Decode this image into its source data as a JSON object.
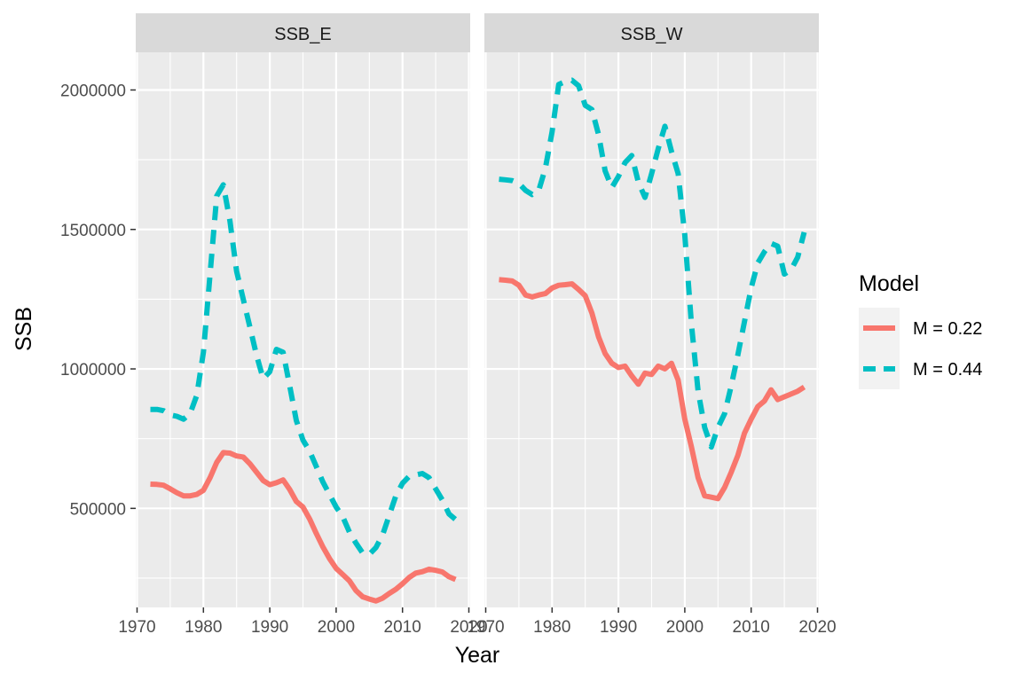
{
  "chart_data": {
    "type": "line",
    "xlabel": "Year",
    "ylabel": "SSB",
    "xlim": [
      1970,
      2020
    ],
    "ylim": [
      145000,
      2135000
    ],
    "x_ticks": [
      1970,
      1980,
      1990,
      2000,
      2010,
      2020
    ],
    "x_tick_labels": [
      "1970",
      "1980",
      "1990",
      "2000",
      "2010",
      "2020"
    ],
    "y_ticks": [
      500000,
      1000000,
      1500000,
      2000000
    ],
    "y_tick_labels": [
      "500000",
      "1000000",
      "1500000",
      "2000000"
    ],
    "y_minor_ticks": [
      250000,
      750000,
      1250000,
      1750000
    ],
    "grid": true,
    "legend": {
      "title": "Model",
      "position": "right",
      "entries": [
        {
          "label": "M = 0.22",
          "color": "#F8766D",
          "dash": "solid"
        },
        {
          "label": "M = 0.44",
          "color": "#00BFC4",
          "dash": "dashed"
        }
      ]
    },
    "panels": [
      {
        "strip": "SSB_E",
        "series": [
          {
            "name": "M = 0.22",
            "x": [
              1972,
              1973,
              1974,
              1975,
              1976,
              1977,
              1978,
              1979,
              1980,
              1981,
              1982,
              1983,
              1984,
              1985,
              1986,
              1987,
              1988,
              1989,
              1990,
              1991,
              1992,
              1993,
              1994,
              1995,
              1996,
              1997,
              1998,
              1999,
              2000,
              2001,
              2002,
              2003,
              2004,
              2005,
              2006,
              2007,
              2008,
              2009,
              2010,
              2011,
              2012,
              2013,
              2014,
              2015,
              2016,
              2017,
              2018
            ],
            "y": [
              587000,
              586000,
              583000,
              570000,
              556000,
              545000,
              545000,
              550000,
              565000,
              610000,
              665000,
              700000,
              698000,
              688000,
              684000,
              660000,
              630000,
              600000,
              585000,
              592000,
              602000,
              568000,
              525000,
              505000,
              462000,
              410000,
              362000,
              320000,
              285000,
              263000,
              240000,
              205000,
              183000,
              175000,
              168000,
              178000,
              195000,
              210000,
              230000,
              252000,
              268000,
              273000,
              282000,
              278000,
              272000,
              255000,
              245000
            ]
          },
          {
            "name": "M = 0.44",
            "x": [
              1972,
              1973,
              1974,
              1975,
              1976,
              1977,
              1978,
              1979,
              1980,
              1981,
              1982,
              1983,
              1984,
              1985,
              1986,
              1987,
              1988,
              1989,
              1990,
              1991,
              1992,
              1993,
              1994,
              1995,
              1996,
              1997,
              1998,
              1999,
              2000,
              2001,
              2002,
              2003,
              2004,
              2005,
              2006,
              2007,
              2008,
              2009,
              2010,
              2011,
              2012,
              2013,
              2014,
              2015,
              2016,
              2017,
              2018
            ],
            "y": [
              855000,
              855000,
              850000,
              835000,
              830000,
              820000,
              840000,
              905000,
              1060000,
              1340000,
              1620000,
              1660000,
              1530000,
              1350000,
              1250000,
              1150000,
              1050000,
              965000,
              990000,
              1070000,
              1060000,
              940000,
              815000,
              745000,
              705000,
              650000,
              595000,
              550000,
              505000,
              470000,
              415000,
              375000,
              340000,
              335000,
              360000,
              405000,
              475000,
              545000,
              590000,
              615000,
              620000,
              625000,
              610000,
              570000,
              530000,
              480000,
              460000
            ]
          }
        ]
      },
      {
        "strip": "SSB_W",
        "series": [
          {
            "name": "M = 0.22",
            "x": [
              1972,
              1973,
              1974,
              1975,
              1976,
              1977,
              1978,
              1979,
              1980,
              1981,
              1982,
              1983,
              1984,
              1985,
              1986,
              1987,
              1988,
              1989,
              1990,
              1991,
              1992,
              1993,
              1994,
              1995,
              1996,
              1997,
              1998,
              1999,
              2000,
              2001,
              2002,
              2003,
              2004,
              2005,
              2006,
              2007,
              2008,
              2009,
              2010,
              2011,
              2012,
              2013,
              2014,
              2015,
              2016,
              2017,
              2018
            ],
            "y": [
              1320000,
              1318000,
              1315000,
              1300000,
              1265000,
              1258000,
              1265000,
              1270000,
              1290000,
              1300000,
              1302000,
              1305000,
              1285000,
              1262000,
              1200000,
              1115000,
              1055000,
              1020000,
              1005000,
              1010000,
              975000,
              945000,
              985000,
              980000,
              1010000,
              1000000,
              1020000,
              960000,
              820000,
              720000,
              610000,
              545000,
              540000,
              535000,
              575000,
              630000,
              690000,
              770000,
              820000,
              865000,
              885000,
              925000,
              890000,
              900000,
              910000,
              920000,
              935000
            ]
          },
          {
            "name": "M = 0.44",
            "x": [
              1972,
              1973,
              1974,
              1975,
              1976,
              1977,
              1978,
              1979,
              1980,
              1981,
              1982,
              1983,
              1984,
              1985,
              1986,
              1987,
              1988,
              1989,
              1990,
              1991,
              1992,
              1993,
              1994,
              1995,
              1996,
              1997,
              1998,
              1999,
              2000,
              2001,
              2002,
              2003,
              2004,
              2005,
              2006,
              2007,
              2008,
              2009,
              2010,
              2011,
              2012,
              2013,
              2014,
              2015,
              2016,
              2017,
              2018
            ],
            "y": [
              1680000,
              1678000,
              1675000,
              1665000,
              1640000,
              1625000,
              1640000,
              1720000,
              1850000,
              2020000,
              2030000,
              2035000,
              2015000,
              1945000,
              1930000,
              1840000,
              1710000,
              1650000,
              1690000,
              1740000,
              1765000,
              1670000,
              1615000,
              1700000,
              1790000,
              1870000,
              1780000,
              1700000,
              1480000,
              1160000,
              920000,
              790000,
              720000,
              790000,
              840000,
              940000,
              1050000,
              1170000,
              1290000,
              1380000,
              1420000,
              1450000,
              1440000,
              1340000,
              1355000,
              1400000,
              1490000
            ]
          }
        ]
      }
    ]
  }
}
